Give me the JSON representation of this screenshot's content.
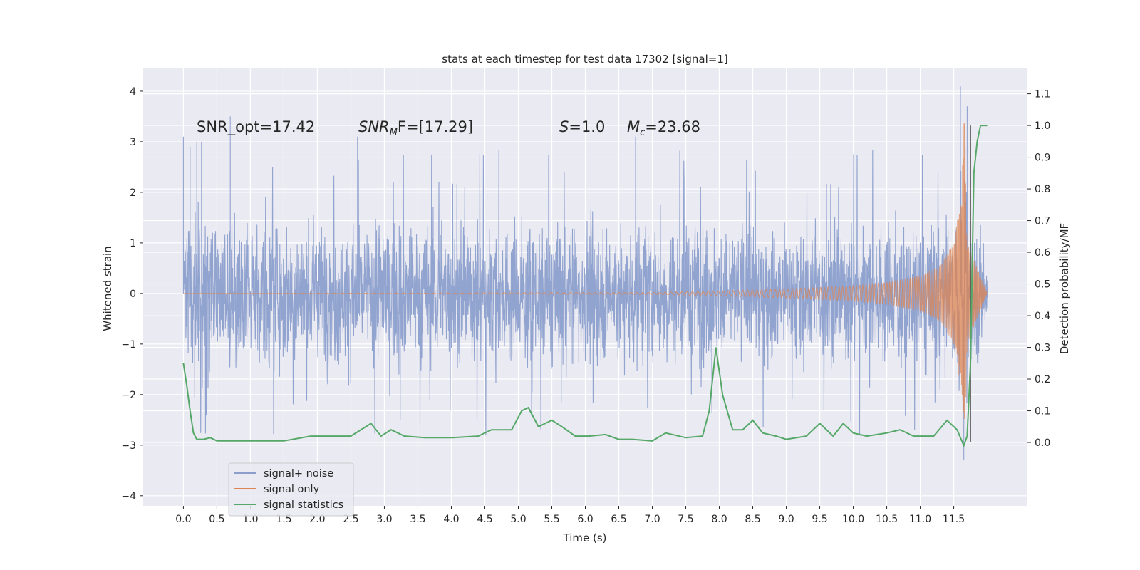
{
  "chart_data": {
    "type": "line",
    "title": "stats at each timestep for test data 17302 [signal=1]",
    "xlabel": "Time (s)",
    "ylabel_left": "Whitened strain",
    "ylabel_right": "Detection probability/MF",
    "xlim": [
      -0.6,
      12.6
    ],
    "ylim_left": [
      -4.2,
      4.45
    ],
    "ylim_right": [
      -0.2,
      1.18
    ],
    "x_ticks": [
      "0.0",
      "0.5",
      "1.0",
      "1.5",
      "2.0",
      "2.5",
      "3.0",
      "3.5",
      "4.0",
      "4.5",
      "5.0",
      "5.5",
      "6.0",
      "6.5",
      "7.0",
      "7.5",
      "8.0",
      "8.5",
      "9.0",
      "9.5",
      "10.0",
      "10.5",
      "11.0",
      "11.5"
    ],
    "y_ticks_left": [
      "4",
      "3",
      "2",
      "1",
      "0",
      "−1",
      "−2",
      "−3",
      "−4"
    ],
    "y_ticks_right": [
      "1.1",
      "1.0",
      "0.9",
      "0.8",
      "0.7",
      "0.6",
      "0.5",
      "0.4",
      "0.3",
      "0.2",
      "0.1",
      "0.0"
    ],
    "grid": true,
    "legend_position": "lower-left",
    "annotations": {
      "snr_opt": "SNR_opt=17.42",
      "snr_mf_prefix": "SNR",
      "snr_mf_sub": "M",
      "snr_mf_suffix": "F=[17.29]",
      "s_symbol": "S",
      "s_value": "=1.0",
      "mc_symbol": "M",
      "mc_sub": "c",
      "mc_value": "=23.68"
    },
    "series": [
      {
        "name": "signal+ noise",
        "color": "#8c9fcc",
        "axis": "left",
        "description_points": {
          "x": [
            0.0,
            0.1,
            0.2,
            0.27,
            0.7,
            2.6,
            6.75,
            11.6,
            11.65,
            11.7,
            12.0
          ],
          "y": [
            3.1,
            2.9,
            3.0,
            3.0,
            3.5,
            3.1,
            3.1,
            4.1,
            -3.3,
            3.7,
            0.0
          ]
        }
      },
      {
        "name": "signal only",
        "color": "#dd8452",
        "axis": "left",
        "envelope": {
          "x": [
            0.0,
            7.0,
            8.0,
            9.0,
            10.0,
            10.5,
            11.0,
            11.3,
            11.5,
            11.6,
            11.66,
            11.7,
            12.0
          ],
          "amp": [
            0.0,
            0.02,
            0.05,
            0.09,
            0.15,
            0.22,
            0.35,
            0.55,
            1.0,
            1.8,
            3.6,
            1.0,
            0.0
          ]
        }
      },
      {
        "name": "signal statistics",
        "color": "#55a868",
        "axis": "right",
        "x": [
          0.0,
          0.05,
          0.1,
          0.15,
          0.2,
          0.3,
          0.4,
          0.5,
          1.0,
          1.5,
          1.9,
          2.1,
          2.5,
          2.8,
          2.95,
          3.1,
          3.3,
          3.6,
          4.0,
          4.4,
          4.6,
          4.9,
          5.05,
          5.15,
          5.3,
          5.5,
          5.65,
          5.85,
          6.05,
          6.3,
          6.5,
          6.7,
          7.0,
          7.2,
          7.5,
          7.75,
          7.85,
          7.95,
          8.05,
          8.2,
          8.35,
          8.5,
          8.65,
          8.85,
          9.0,
          9.3,
          9.5,
          9.7,
          9.85,
          10.0,
          10.2,
          10.5,
          10.7,
          10.9,
          11.2,
          11.4,
          11.55,
          11.65,
          11.7,
          11.75,
          11.8,
          11.85,
          11.9,
          11.95,
          12.0
        ],
        "y": [
          0.25,
          0.18,
          0.1,
          0.03,
          0.01,
          0.01,
          0.015,
          0.005,
          0.005,
          0.005,
          0.02,
          0.02,
          0.02,
          0.06,
          0.02,
          0.04,
          0.02,
          0.015,
          0.015,
          0.02,
          0.04,
          0.04,
          0.1,
          0.11,
          0.05,
          0.07,
          0.05,
          0.02,
          0.02,
          0.025,
          0.01,
          0.01,
          0.005,
          0.03,
          0.015,
          0.02,
          0.1,
          0.3,
          0.15,
          0.04,
          0.04,
          0.07,
          0.03,
          0.02,
          0.01,
          0.02,
          0.06,
          0.02,
          0.06,
          0.03,
          0.02,
          0.03,
          0.04,
          0.02,
          0.02,
          0.07,
          0.04,
          -0.01,
          0.02,
          0.25,
          0.85,
          0.95,
          1.0,
          1.0,
          1.0
        ]
      }
    ]
  }
}
